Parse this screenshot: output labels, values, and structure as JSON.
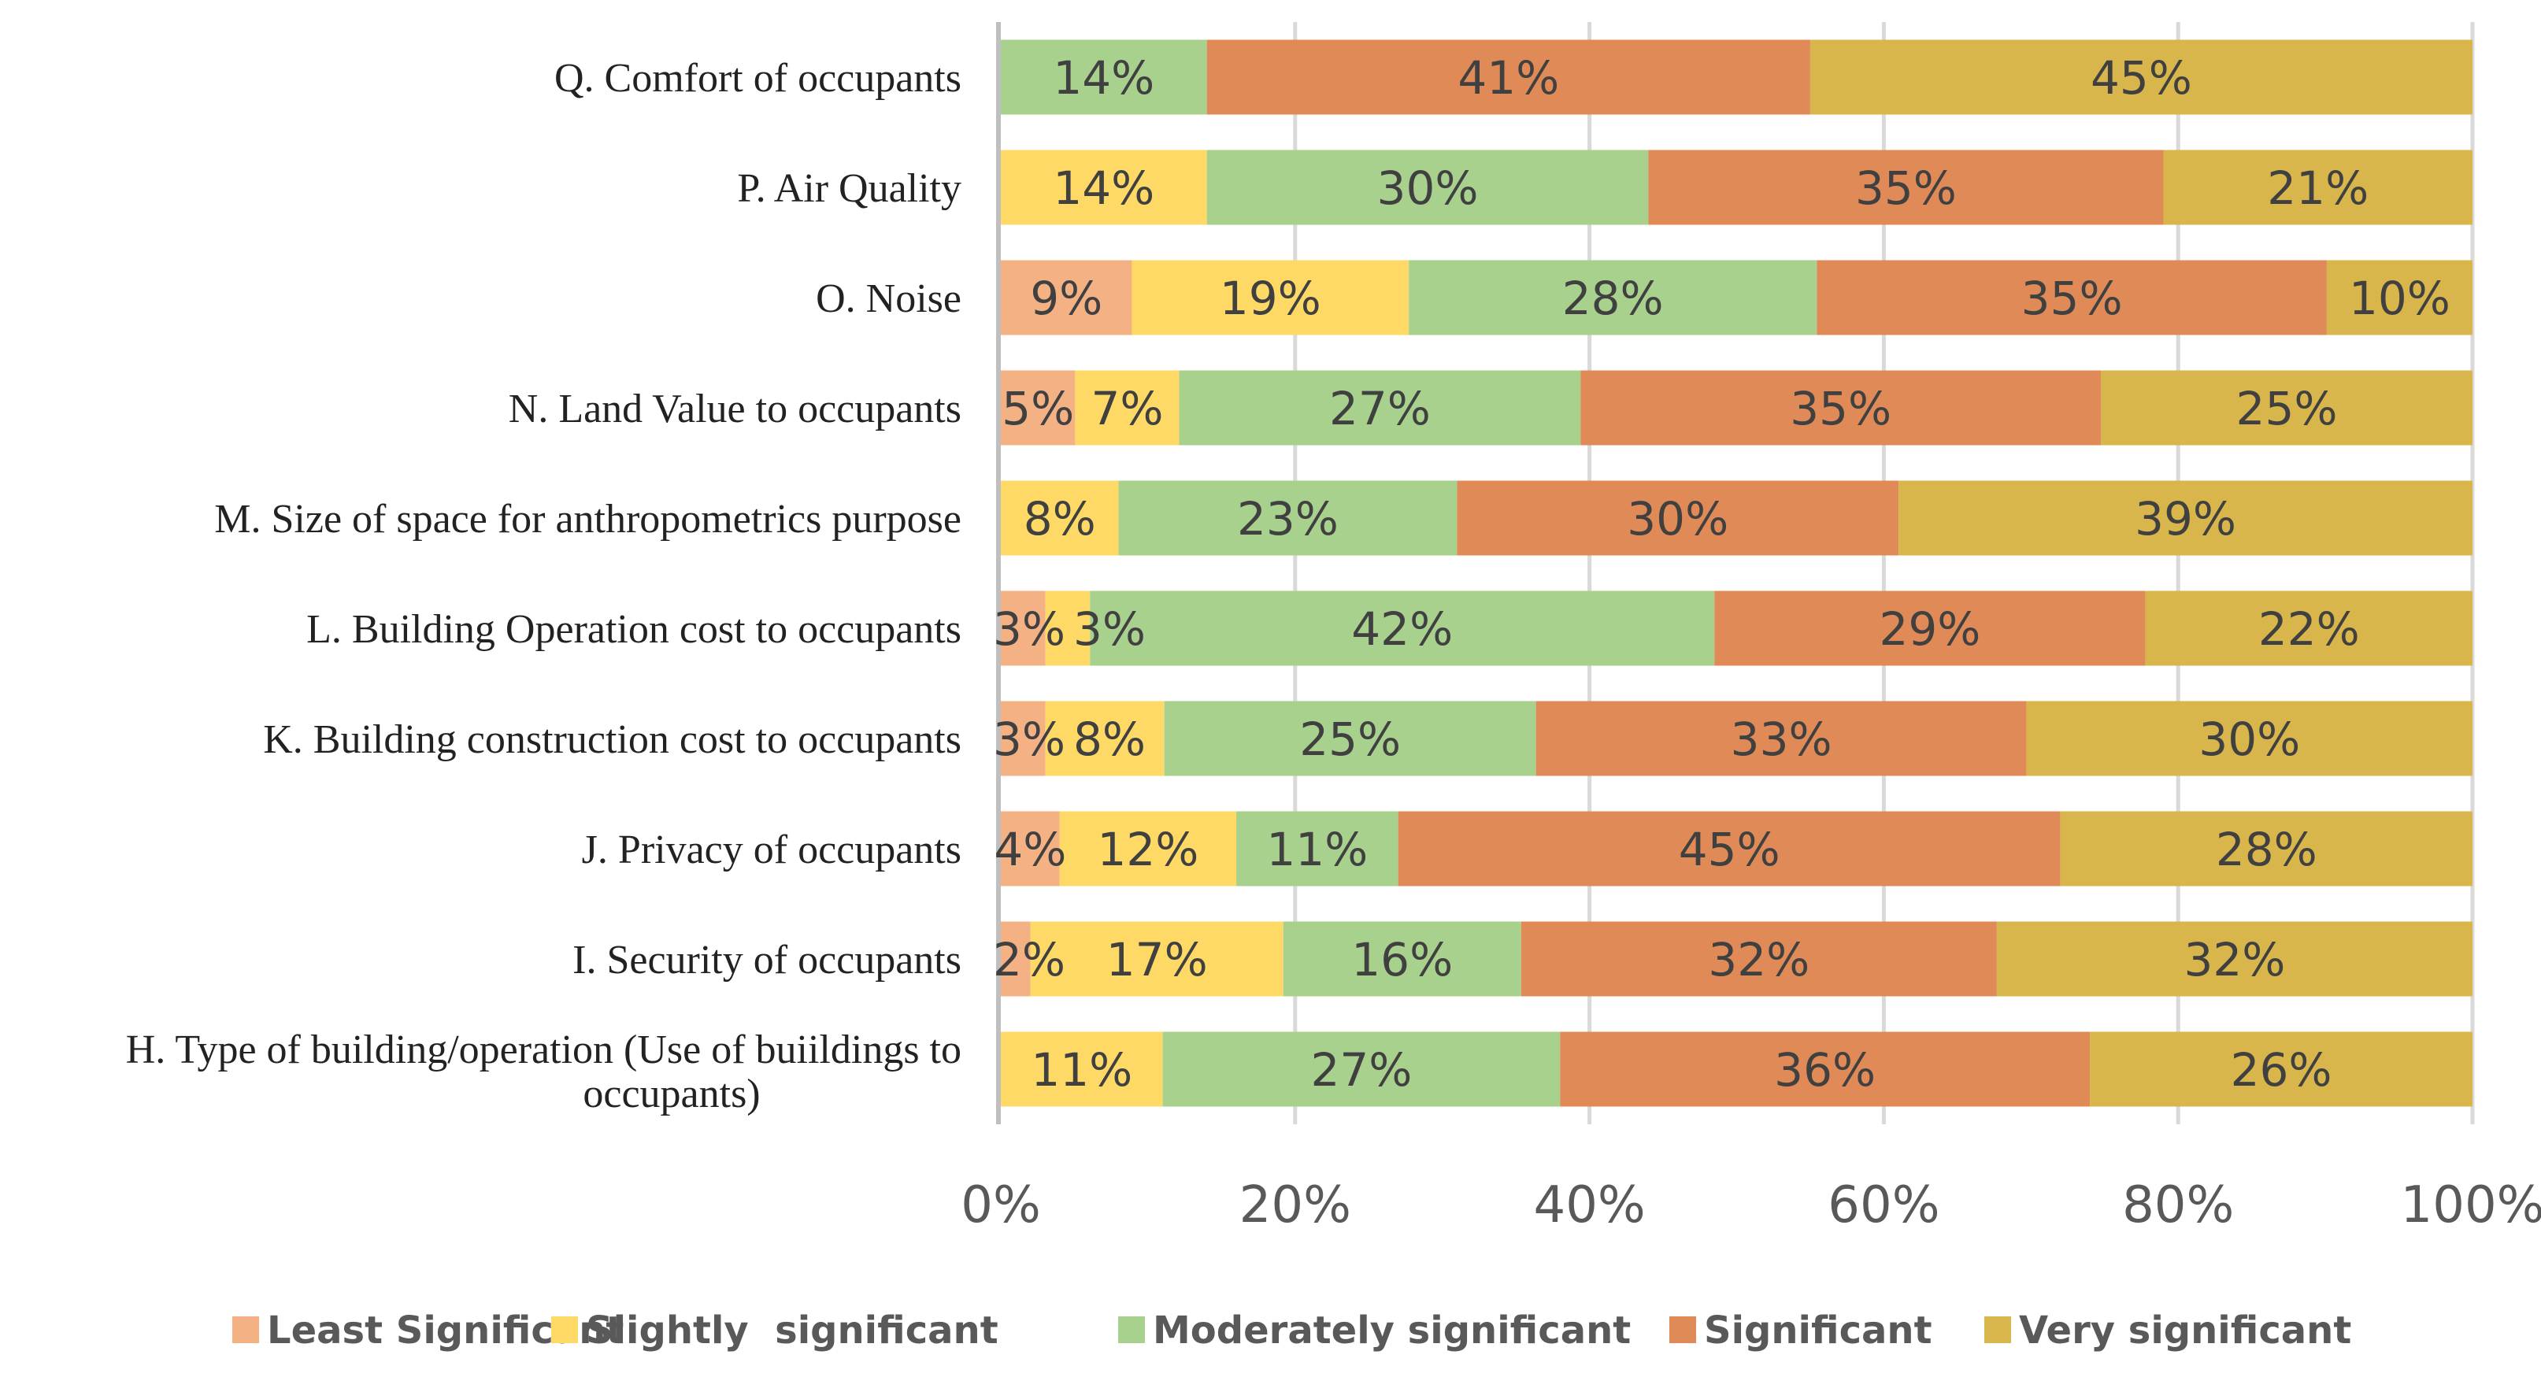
{
  "chart_data": {
    "type": "bar",
    "orientation": "horizontal",
    "stacked": "percent",
    "categories": [
      "Q. Comfort of occupants",
      "P. Air Quality",
      "O. Noise",
      "N. Land Value to occupants",
      "M. Size of space for anthropometrics purpose",
      "L. Building Operation cost to occupants",
      "K. Building construction cost to occupants",
      "J. Privacy of occupants",
      "I. Security of occupants",
      "H. Type of building/operation (Use of buiildings to occupants)"
    ],
    "series": [
      {
        "name": "Least Significant",
        "color": "#F4B183",
        "values": [
          0,
          0,
          9,
          5,
          0,
          3,
          3,
          4,
          2,
          0
        ]
      },
      {
        "name": "Slightly  significant",
        "color": "#FFD966",
        "values": [
          0,
          14,
          19,
          7,
          8,
          3,
          8,
          12,
          17,
          11
        ]
      },
      {
        "name": "Moderately significant",
        "color": "#A9D18E",
        "values": [
          14,
          30,
          28,
          27,
          23,
          42,
          25,
          11,
          16,
          27
        ]
      },
      {
        "name": "Significant",
        "color": "#E08B57",
        "values": [
          41,
          35,
          35,
          35,
          30,
          29,
          33,
          45,
          32,
          36
        ]
      },
      {
        "name": "Very significant",
        "color": "#D9B64C",
        "values": [
          45,
          21,
          10,
          25,
          39,
          22,
          30,
          28,
          32,
          26
        ]
      }
    ],
    "x_ticks": [
      "0%",
      "20%",
      "40%",
      "60%",
      "80%",
      "100%"
    ],
    "xlim": [
      0,
      100
    ],
    "grid": "vertical",
    "legend": "bottom",
    "data_labels": true
  }
}
